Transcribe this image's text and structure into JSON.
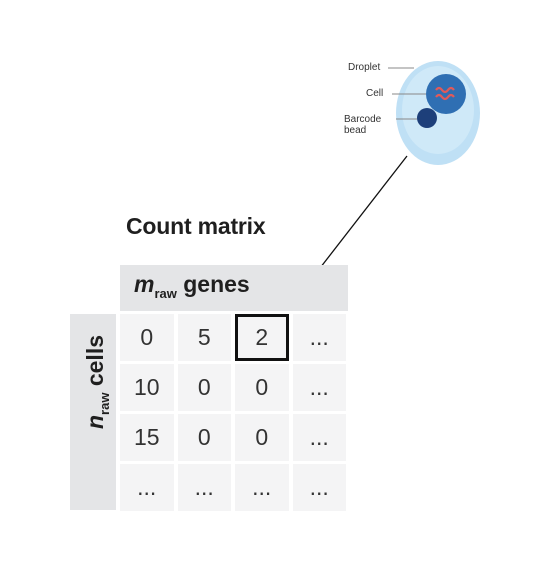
{
  "droplet": {
    "labels": {
      "droplet": "Droplet",
      "cell": "Cell",
      "barcode": "Barcode bead"
    }
  },
  "matrix": {
    "title": "Count matrix",
    "genes_header": {
      "var": "m",
      "sub": "raw",
      "word": "genes"
    },
    "cells_header": {
      "var": "n",
      "sub": "raw",
      "word": "cells"
    },
    "rows": [
      [
        "0",
        "5",
        "2",
        "..."
      ],
      [
        "10",
        "0",
        "0",
        "..."
      ],
      [
        "15",
        "0",
        "0",
        "..."
      ],
      [
        "...",
        "...",
        "...",
        "..."
      ]
    ],
    "highlighted_cell": {
      "row": 0,
      "col": 2
    }
  },
  "colors": {
    "droplet_fill": "#bfe0f5",
    "cell_fill": "#2f6fb3",
    "bead_fill": "#1d3f7a",
    "rna": "#e05a5a",
    "header_bg": "#e4e5e7",
    "cell_bg": "#f4f4f5"
  }
}
